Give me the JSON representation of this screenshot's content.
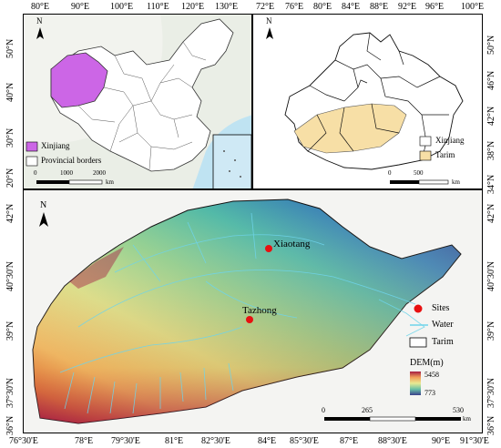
{
  "colors": {
    "xinjiang": "#cc66e6",
    "tarim": "#f7dfa6",
    "sites": "#e81010",
    "water": "#6fd4ea",
    "dem_high": "#a51d43",
    "dem_low": "#3b3f8c"
  },
  "china_map": {
    "top_ticks": [
      "80°E",
      "90°E",
      "100°E",
      "110°E",
      "120°E",
      "130°E"
    ],
    "left_ticks": [
      "50°N",
      "40°N",
      "30°N",
      "20°N"
    ],
    "north": "N",
    "legend": {
      "xinjiang": "Xinjiang",
      "borders": "Provincial borders"
    },
    "scale": {
      "ticks": [
        "0",
        "1000",
        "2000"
      ],
      "unit": "km"
    }
  },
  "xinjiang_map": {
    "top_ticks": [
      "72°E",
      "76°E",
      "80°E",
      "84°E",
      "88°E",
      "92°E",
      "96°E",
      "100°E"
    ],
    "right_ticks": [
      "50°N",
      "46°N",
      "42°N",
      "38°N",
      "34°N"
    ],
    "north": "N",
    "legend": {
      "xinjiang": "Xinjiang",
      "tarim": "Tarim"
    },
    "scale": {
      "ticks": [
        "0",
        "500"
      ],
      "unit": "km"
    }
  },
  "tarim_map": {
    "bottom_ticks": [
      "76°30'E",
      "78°E",
      "79°30'E",
      "81°E",
      "82°30'E",
      "84°E",
      "85°30'E",
      "87°E",
      "88°30'E",
      "90°E",
      "91°30'E"
    ],
    "left_ticks": [
      "42°N",
      "40°30'N",
      "39°N",
      "37°30'N",
      "36°N"
    ],
    "right_ticks": [
      "42°N",
      "40°30'N",
      "39°N",
      "37°30'N",
      "36°N"
    ],
    "north": "N",
    "sites": [
      "Xiaotang",
      "Tazhong"
    ],
    "legend": {
      "sites": "Sites",
      "water": "Water",
      "tarim": "Tarim",
      "dem_title": "DEM(m)",
      "dem_max": "5458",
      "dem_min": "773"
    },
    "scale": {
      "ticks": [
        "0",
        "265",
        "530"
      ],
      "unit": "km"
    }
  }
}
